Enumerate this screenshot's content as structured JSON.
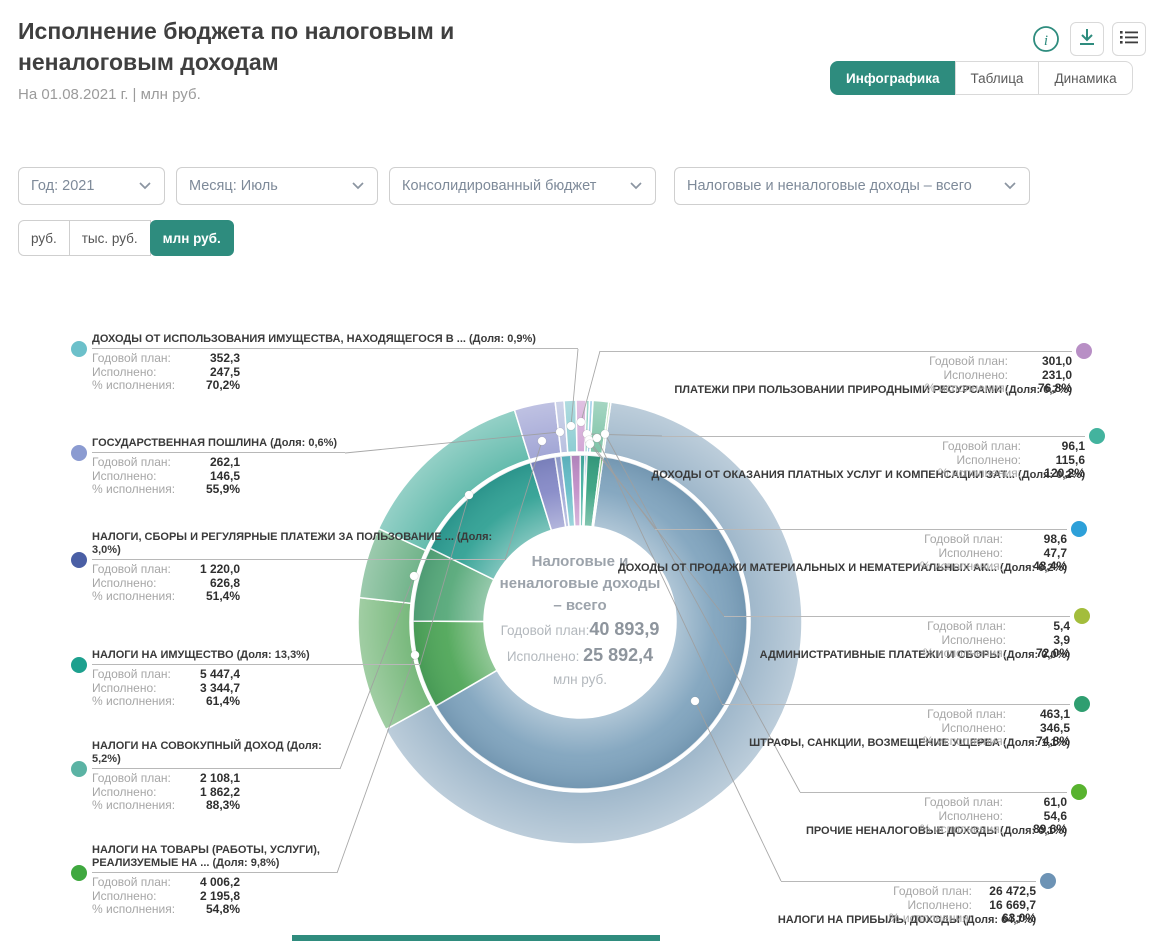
{
  "header": {
    "title": "Исполнение бюджета по налоговым и неналоговым доходам",
    "subtitle": "На 01.08.2021 г. | млн руб."
  },
  "toolbar": {
    "icons": [
      "info-icon",
      "download-icon",
      "list-icon"
    ]
  },
  "tabs": [
    {
      "label": "Инфографика",
      "active": true
    },
    {
      "label": "Таблица",
      "active": false
    },
    {
      "label": "Динамика",
      "active": false
    }
  ],
  "filters": [
    {
      "value": "Год: 2021"
    },
    {
      "value": "Месяц: Июль"
    },
    {
      "value": "Консолидированный бюджет"
    },
    {
      "value": "Налоговые и неналоговые доходы – всего"
    }
  ],
  "units": [
    {
      "label": "руб.",
      "active": false
    },
    {
      "label": "тыс. руб.",
      "active": false
    },
    {
      "label": "млн руб.",
      "active": true
    }
  ],
  "row_labels": {
    "plan": "Годовой план:",
    "exec": "Исполнено:",
    "pct": "% исполнения:"
  },
  "center": {
    "title_lines": [
      "Налоговые и",
      "неналоговые доходы",
      "– всего"
    ],
    "plan_label": "Годовой план:",
    "plan_value": "40 893,9",
    "exec_label": "Исполнено:",
    "exec_value": "25 892,4",
    "unit": "млн руб."
  },
  "accent_color": "#2e8c7e",
  "chart_data": {
    "type": "donut",
    "rings": [
      "Годовой план (внешнее кольцо)",
      "Исполнено (внутреннее кольцо)"
    ],
    "total_plan": 40893.9,
    "total_executed": 25892.4,
    "categories": [
      {
        "key": "profit",
        "title": "НАЛОГИ НА ПРИБЫЛЬ, ДОХОДЫ (Доля: 64,7%)",
        "share": "64,7%",
        "plan_num": 26472.5,
        "exec_num": 16669.7,
        "plan": "26 472,5",
        "exec": "16 669,7",
        "pct": "63,0%",
        "bullet": "#6d93b5",
        "outer": "#a0b8cb",
        "inner": "#7fa3bd"
      },
      {
        "key": "goods",
        "title": "НАЛОГИ НА ТОВАРЫ (РАБОТЫ, УСЛУГИ), РЕАЛИЗУЕМЫЕ НА ... (Доля: 9,8%)",
        "share": "9,8%",
        "plan_num": 4006.2,
        "exec_num": 2195.8,
        "plan": "4 006,2",
        "exec": "2 195,8",
        "pct": "54,8%",
        "bullet": "#3fa83f",
        "outer": "#79b97d",
        "inner": "#4ea657"
      },
      {
        "key": "aggregate",
        "title": "НАЛОГИ НА СОВОКУПНЫЙ ДОХОД (Доля: 5,2%)",
        "share": "5,2%",
        "plan_num": 2108.1,
        "exec_num": 1862.2,
        "plan": "2 108,1",
        "exec": "1 862,2",
        "pct": "88,3%",
        "bullet": "#5bb3a4",
        "outer": "#72b48b",
        "inner": "#55a878"
      },
      {
        "key": "property_tax",
        "title": "НАЛОГИ НА ИМУЩЕСТВО (Доля: 13,3%)",
        "share": "13,3%",
        "plan_num": 5447.4,
        "exec_num": 3344.7,
        "plan": "5 447,4",
        "exec": "3 344,7",
        "pct": "61,4%",
        "bullet": "#1da08e",
        "outer": "#66bcae",
        "inner": "#2fa093"
      },
      {
        "key": "fees",
        "title": "НАЛОГИ, СБОРЫ И РЕГУЛЯРНЫЕ ПЛАТЕЖИ ЗА ПОЛЬЗОВАНИЕ ... (Доля: 3,0%)",
        "share": "3,0%",
        "plan_num": 1220.0,
        "exec_num": 626.8,
        "plan": "1 220,0",
        "exec": "626,8",
        "pct": "51,4%",
        "bullet": "#4a5fa5",
        "outer": "#a3a7d6",
        "inner": "#8488c6"
      },
      {
        "key": "duty",
        "title": "ГОСУДАРСТВЕННАЯ ПОШЛИНА (Доля: 0,6%)",
        "share": "0,6%",
        "plan_num": 262.1,
        "exec_num": 146.5,
        "plan": "262,1",
        "exec": "146,5",
        "pct": "55,9%",
        "bullet": "#8b9bd1",
        "outer": "#b9c1e0",
        "inner": "#9aa4d4"
      },
      {
        "key": "property_use",
        "title": "ДОХОДЫ ОТ ИСПОЛЬЗОВАНИЯ ИМУЩЕСТВА, НАХОДЯЩЕГОСЯ В ... (Доля: 0,9%)",
        "share": "0,9%",
        "plan_num": 352.3,
        "exec_num": 247.5,
        "plan": "352,3",
        "exec": "247,5",
        "pct": "70,2%",
        "bullet": "#6cc0ca",
        "outer": "#8ecdd3",
        "inner": "#62bcc6"
      },
      {
        "key": "nature",
        "title": "ПЛАТЕЖИ ПРИ ПОЛЬЗОВАНИИ ПРИРОДНЫМИ РЕСУРСАМИ (Доля: 0,7%)",
        "share": "0,7%",
        "plan_num": 301.0,
        "exec_num": 231.0,
        "plan": "301,0",
        "exec": "231,0",
        "pct": "76,8%",
        "bullet": "#b88fc5",
        "outer": "#d3a8d6",
        "inner": "#c08cc6"
      },
      {
        "key": "services",
        "title": "ДОХОДЫ ОТ ОКАЗАНИЯ ПЛАТНЫХ УСЛУГ И КОМПЕНСАЦИИ ЗАТ... (Доля: 0,2%)",
        "share": "0,2%",
        "plan_num": 96.1,
        "exec_num": 115.6,
        "plan": "96,1",
        "exec": "115,6",
        "pct": "120,2%",
        "bullet": "#43b39e",
        "outer": "#7ec9ba",
        "inner": "#45b0a1"
      },
      {
        "key": "sales",
        "title": "ДОХОДЫ ОТ ПРОДАЖИ МАТЕРИАЛЬНЫХ И НЕМАТЕРИАЛЬНЫХ АК... (Доля: 0,2%)",
        "share": "0,2%",
        "plan_num": 98.6,
        "exec_num": 47.7,
        "plan": "98,6",
        "exec": "47,7",
        "pct": "48,4%",
        "bullet": "#2da0d9",
        "outer": "#8cc3e4",
        "inner": "#3da2d8"
      },
      {
        "key": "admin",
        "title": "АДМИНИСТРАТИВНЫЕ ПЛАТЕЖИ И СБОРЫ (Доля: 0,0%)",
        "share": "0,0%",
        "plan_num": 5.4,
        "exec_num": 3.9,
        "plan": "5,4",
        "exec": "3,9",
        "pct": "72,0%",
        "bullet": "#a3bd3c",
        "outer": "#c6d48a",
        "inner": "#a6bf44"
      },
      {
        "key": "fines",
        "title": "ШТРАФЫ, САНКЦИИ, ВОЗМЕЩЕНИЕ УЩЕРБА (Доля: 1,1%)",
        "share": "1,1%",
        "plan_num": 463.1,
        "exec_num": 346.5,
        "plan": "463,1",
        "exec": "346,5",
        "pct": "74,8%",
        "bullet": "#2f9e70",
        "outer": "#7fc4a8",
        "inner": "#36a17f"
      },
      {
        "key": "other",
        "title": "ПРОЧИЕ НЕНАЛОГОВЫЕ ДОХОДЫ (Доля: 0,1%)",
        "share": "0,1%",
        "plan_num": 61.0,
        "exec_num": 54.6,
        "plan": "61,0",
        "exec": "54,6",
        "pct": "89,6%",
        "bullet": "#58b32f",
        "outer": "#93d084",
        "inner": "#57b94a"
      }
    ]
  }
}
